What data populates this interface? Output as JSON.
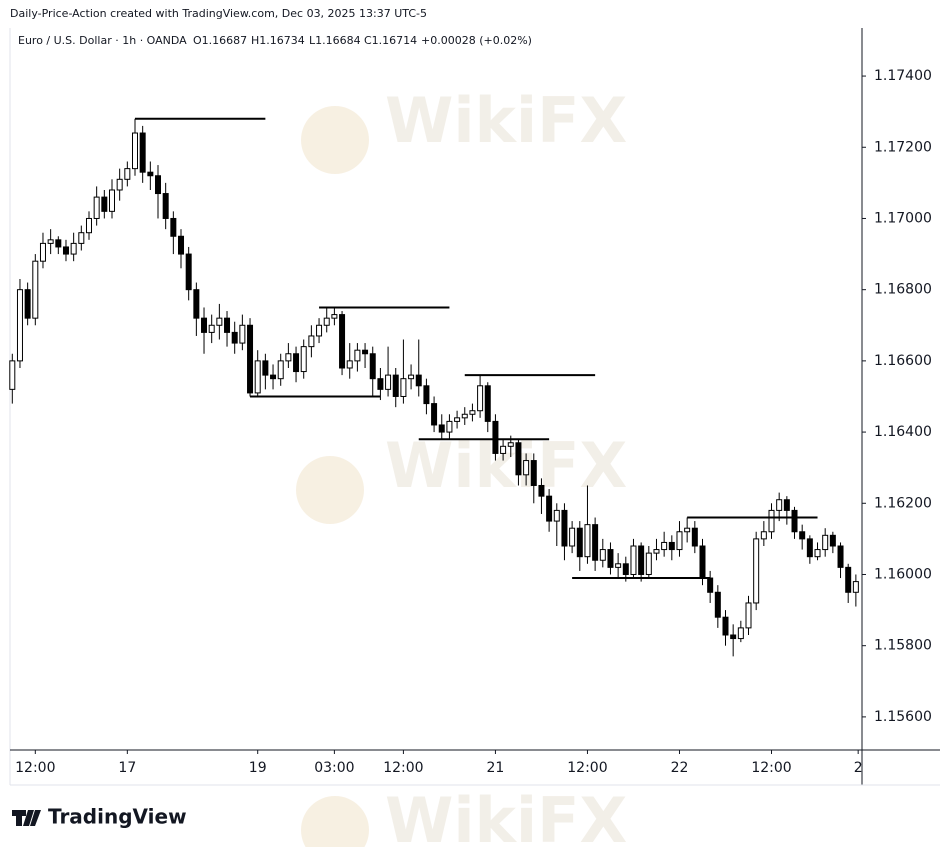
{
  "header": {
    "credit": "Daily-Price-Action created with TradingView.com, Dec 03, 2025 13:37 UTC-5",
    "symbol": "Euro / U.S. Dollar · 1h · OANDA",
    "quote": [
      "O1.16687",
      "H1.16734",
      "L1.16684",
      "C1.16714",
      "+0.00028 (+0.02%)"
    ]
  },
  "logo": "TradingView",
  "watermark": "WikiFX",
  "chart_data": {
    "type": "candlestick",
    "up_color": "#ffffff",
    "down_color": "#000000",
    "edge_color": "#000000",
    "open": [
      1.1652,
      1.166,
      1.168,
      1.1672,
      1.1688,
      1.1693,
      1.1694,
      1.1692,
      1.169,
      1.1693,
      1.1696,
      1.17,
      1.1706,
      1.1702,
      1.1708,
      1.1711,
      1.1714,
      1.1724,
      1.1713,
      1.1712,
      1.1707,
      1.17,
      1.1695,
      1.169,
      1.168,
      1.1672,
      1.1668,
      1.167,
      1.1672,
      1.1668,
      1.1665,
      1.167,
      1.1651,
      1.166,
      1.1656,
      1.1655,
      1.166,
      1.1662,
      1.1657,
      1.1664,
      1.1667,
      1.167,
      1.1672,
      1.1673,
      1.1658,
      1.166,
      1.1663,
      1.1662,
      1.1655,
      1.1652,
      1.1656,
      1.165,
      1.1655,
      1.1656,
      1.1653,
      1.1648,
      1.1642,
      1.164,
      1.1643,
      1.1644,
      1.1645,
      1.1646,
      1.1653,
      1.1643,
      1.1634,
      1.1636,
      1.1637,
      1.1628,
      1.1632,
      1.1625,
      1.1622,
      1.1615,
      1.1618,
      1.1608,
      1.1613,
      1.1605,
      1.1614,
      1.1604,
      1.1607,
      1.1602,
      1.1603,
      1.16,
      1.1608,
      1.16,
      1.1606,
      1.1607,
      1.1609,
      1.1607,
      1.1612,
      1.1613,
      1.1608,
      1.1599,
      1.1595,
      1.1588,
      1.1583,
      1.1582,
      1.1585,
      1.1592,
      1.161,
      1.1612,
      1.1618,
      1.1621,
      1.1618,
      1.1612,
      1.161,
      1.1605,
      1.1607,
      1.1611,
      1.1608,
      1.1602,
      1.1595
    ],
    "high": [
      1.1662,
      1.1683,
      1.1682,
      1.169,
      1.1696,
      1.1697,
      1.1695,
      1.1694,
      1.1696,
      1.1698,
      1.1702,
      1.1709,
      1.1708,
      1.1711,
      1.1714,
      1.1716,
      1.1728,
      1.1726,
      1.1716,
      1.1715,
      1.171,
      1.1702,
      1.1697,
      1.1692,
      1.1682,
      1.1675,
      1.1673,
      1.1676,
      1.1674,
      1.1671,
      1.1673,
      1.1672,
      1.1663,
      1.1662,
      1.1659,
      1.1662,
      1.1665,
      1.1664,
      1.1666,
      1.167,
      1.1672,
      1.1675,
      1.1675,
      1.1674,
      1.1665,
      1.1665,
      1.1665,
      1.1664,
      1.1658,
      1.1664,
      1.1658,
      1.1666,
      1.1659,
      1.1666,
      1.1655,
      1.165,
      1.1645,
      1.1645,
      1.1646,
      1.1647,
      1.1648,
      1.1656,
      1.1654,
      1.1645,
      1.1638,
      1.1639,
      1.1638,
      1.1634,
      1.1634,
      1.1627,
      1.1624,
      1.162,
      1.162,
      1.1615,
      1.1615,
      1.1625,
      1.1616,
      1.161,
      1.1609,
      1.1606,
      1.1605,
      1.161,
      1.1609,
      1.1608,
      1.161,
      1.1612,
      1.1611,
      1.1615,
      1.1616,
      1.1615,
      1.161,
      1.1601,
      1.1597,
      1.159,
      1.1586,
      1.1587,
      1.1594,
      1.1612,
      1.1615,
      1.162,
      1.1623,
      1.1622,
      1.1619,
      1.1614,
      1.1611,
      1.1609,
      1.1613,
      1.1612,
      1.1609,
      1.1603,
      1.16
    ],
    "low": [
      1.1648,
      1.1658,
      1.167,
      1.167,
      1.1686,
      1.169,
      1.169,
      1.1688,
      1.1688,
      1.1691,
      1.1694,
      1.1698,
      1.17,
      1.17,
      1.1705,
      1.1709,
      1.1712,
      1.171,
      1.1708,
      1.17,
      1.1697,
      1.169,
      1.1686,
      1.1677,
      1.1667,
      1.1662,
      1.1665,
      1.1666,
      1.1664,
      1.1662,
      1.1663,
      1.165,
      1.165,
      1.1652,
      1.1652,
      1.1653,
      1.1658,
      1.1654,
      1.1655,
      1.1661,
      1.1665,
      1.1668,
      1.167,
      1.1656,
      1.1655,
      1.1657,
      1.1658,
      1.165,
      1.1649,
      1.165,
      1.1647,
      1.1648,
      1.1652,
      1.165,
      1.1645,
      1.164,
      1.1638,
      1.1638,
      1.1641,
      1.1642,
      1.1643,
      1.1644,
      1.164,
      1.1632,
      1.1632,
      1.1633,
      1.1625,
      1.1625,
      1.162,
      1.1617,
      1.1612,
      1.1608,
      1.1604,
      1.1606,
      1.1601,
      1.1603,
      1.1601,
      1.1602,
      1.16,
      1.1599,
      1.1598,
      1.1599,
      1.1598,
      1.1599,
      1.1604,
      1.1605,
      1.1604,
      1.1605,
      1.1609,
      1.1606,
      1.1597,
      1.1592,
      1.1585,
      1.158,
      1.1577,
      1.1581,
      1.1583,
      1.159,
      1.1608,
      1.161,
      1.1615,
      1.1614,
      1.161,
      1.1607,
      1.1603,
      1.1604,
      1.1605,
      1.1606,
      1.1599,
      1.1592,
      1.1591
    ],
    "close": [
      1.166,
      1.168,
      1.1672,
      1.1688,
      1.1693,
      1.1694,
      1.1692,
      1.169,
      1.1693,
      1.1696,
      1.17,
      1.1706,
      1.1702,
      1.1708,
      1.1711,
      1.1714,
      1.1724,
      1.1713,
      1.1712,
      1.1707,
      1.17,
      1.1695,
      1.169,
      1.168,
      1.1672,
      1.1668,
      1.167,
      1.1672,
      1.1668,
      1.1665,
      1.167,
      1.1651,
      1.166,
      1.1656,
      1.1655,
      1.166,
      1.1662,
      1.1657,
      1.1664,
      1.1667,
      1.167,
      1.1672,
      1.1673,
      1.1658,
      1.166,
      1.1663,
      1.1662,
      1.1655,
      1.1652,
      1.1656,
      1.165,
      1.1655,
      1.1656,
      1.1653,
      1.1648,
      1.1642,
      1.164,
      1.1643,
      1.1644,
      1.1645,
      1.1646,
      1.1653,
      1.1643,
      1.1634,
      1.1636,
      1.1637,
      1.1628,
      1.1632,
      1.1625,
      1.1622,
      1.1615,
      1.1618,
      1.1608,
      1.1613,
      1.1605,
      1.1614,
      1.1604,
      1.1607,
      1.1602,
      1.1603,
      1.16,
      1.1608,
      1.16,
      1.1606,
      1.1607,
      1.1609,
      1.1607,
      1.1612,
      1.1613,
      1.1608,
      1.1599,
      1.1595,
      1.1588,
      1.1583,
      1.1582,
      1.1585,
      1.1592,
      1.161,
      1.1612,
      1.1618,
      1.1621,
      1.1618,
      1.1612,
      1.161,
      1.1605,
      1.1607,
      1.1611,
      1.1608,
      1.1602,
      1.1595,
      1.1598
    ],
    "levels": [
      {
        "value": 1.1728,
        "from": 16,
        "to": 33
      },
      {
        "value": 1.1675,
        "from": 40,
        "to": 57
      },
      {
        "value": 1.165,
        "from": 31,
        "to": 48
      },
      {
        "value": 1.1656,
        "from": 59,
        "to": 76
      },
      {
        "value": 1.1638,
        "from": 53,
        "to": 70
      },
      {
        "value": 1.1616,
        "from": 88,
        "to": 105
      },
      {
        "value": 1.1599,
        "from": 73,
        "to": 91
      }
    ],
    "xlim": [
      -0.3,
      110.8
    ],
    "xticks": [
      {
        "value": 3,
        "label": "12:00"
      },
      {
        "value": 15,
        "label": "17"
      },
      {
        "value": 32,
        "label": "19"
      },
      {
        "value": 42,
        "label": "03:00"
      },
      {
        "value": 51,
        "label": "12:00"
      },
      {
        "value": 63,
        "label": "21"
      },
      {
        "value": 75,
        "label": "12:00"
      },
      {
        "value": 87,
        "label": "22"
      },
      {
        "value": 99,
        "label": "12:00"
      },
      {
        "value": 110.3,
        "label": "2"
      }
    ],
    "ylim": [
      1.15507,
      1.17535
    ],
    "yticks": [
      {
        "value": 1.156,
        "label": "1.15600"
      },
      {
        "value": 1.158,
        "label": "1.15800"
      },
      {
        "value": 1.16,
        "label": "1.16000"
      },
      {
        "value": 1.162,
        "label": "1.16200"
      },
      {
        "value": 1.164,
        "label": "1.16400"
      },
      {
        "value": 1.166,
        "label": "1.16600"
      },
      {
        "value": 1.168,
        "label": "1.16800"
      },
      {
        "value": 1.17,
        "label": "1.17000"
      },
      {
        "value": 1.172,
        "label": "1.17200"
      },
      {
        "value": 1.174,
        "label": "1.17400"
      }
    ],
    "grid": false
  }
}
